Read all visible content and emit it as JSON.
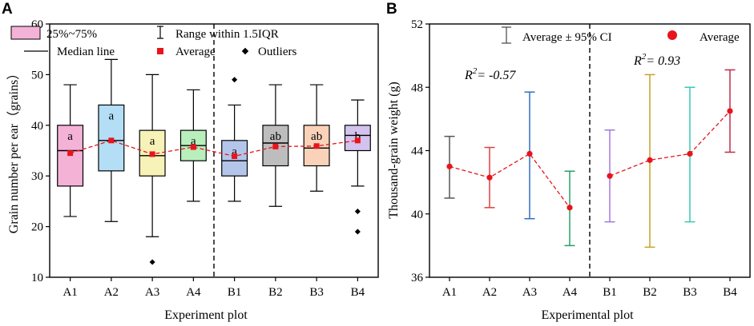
{
  "chart_data": [
    {
      "panel": "A",
      "type": "box",
      "xlabel": "Experiment plot",
      "ylabel": "Grain number per ear（grains）",
      "ylim": [
        10,
        60
      ],
      "yticks": [
        10,
        20,
        30,
        40,
        50,
        60
      ],
      "legend": {
        "box": "25%~75%",
        "range": "Range within 1.5IQR",
        "median": "Median line",
        "average": "Average",
        "outliers": "Outliers"
      },
      "categories": [
        "A1",
        "A2",
        "A3",
        "A4",
        "B1",
        "B2",
        "B3",
        "B4"
      ],
      "box_colors": [
        "#f4b2d6",
        "#b3def5",
        "#f6f2b8",
        "#b9efbc",
        "#b3c6ea",
        "#bdbdbd",
        "#f9d2b9",
        "#d3c3ee"
      ],
      "boxes": [
        {
          "min": 22,
          "q1": 28,
          "median": 35,
          "q3": 40,
          "max": 48,
          "mean": 34.5,
          "letter": "a",
          "outliers": []
        },
        {
          "min": 21,
          "q1": 31,
          "median": 37,
          "q3": 44,
          "max": 53,
          "mean": 37,
          "letter": "a",
          "outliers": []
        },
        {
          "min": 18,
          "q1": 30,
          "median": 34,
          "q3": 39,
          "max": 50,
          "mean": 34.3,
          "letter": "a",
          "outliers": [
            13
          ]
        },
        {
          "min": 25,
          "q1": 33,
          "median": 36,
          "q3": 39,
          "max": 47,
          "mean": 35.7,
          "letter": "a",
          "outliers": []
        },
        {
          "min": 25,
          "q1": 30,
          "median": 33,
          "q3": 37,
          "max": 44,
          "mean": 33.9,
          "letter": "a",
          "outliers": [
            49
          ]
        },
        {
          "min": 24,
          "q1": 32,
          "median": 36.5,
          "q3": 40,
          "max": 48,
          "mean": 35.8,
          "letter": "ab",
          "outliers": []
        },
        {
          "min": 27,
          "q1": 32,
          "median": 35.5,
          "q3": 40,
          "max": 48,
          "mean": 35.9,
          "letter": "ab",
          "outliers": []
        },
        {
          "min": 28,
          "q1": 35,
          "median": 38,
          "q3": 40,
          "max": 45,
          "mean": 37,
          "letter": "b",
          "outliers": [
            23,
            19
          ]
        }
      ]
    },
    {
      "panel": "B",
      "type": "errorbar",
      "xlabel": "Experimental plot",
      "ylabel": "Thousand-grain weight (g)",
      "ylim": [
        36,
        52
      ],
      "yticks": [
        36,
        40,
        44,
        48,
        52
      ],
      "legend": {
        "ci": "Average ± 95% CI",
        "average": "Average"
      },
      "annotations": [
        {
          "base": "R",
          "sup": "2",
          "rest": "= -0.57"
        },
        {
          "base": "R",
          "sup": "2",
          "rest": "= 0.93"
        }
      ],
      "categories": [
        "A1",
        "A2",
        "A3",
        "A4",
        "B1",
        "B2",
        "B3",
        "B4"
      ],
      "bar_colors": [
        "#555555",
        "#e04040",
        "#2f6fbd",
        "#2a9d6a",
        "#a07ad8",
        "#c9a227",
        "#37c9b3",
        "#c02a4a"
      ],
      "points": [
        {
          "mean": 43.0,
          "low": 41.0,
          "high": 44.9
        },
        {
          "mean": 42.3,
          "low": 40.4,
          "high": 44.2
        },
        {
          "mean": 43.8,
          "low": 39.7,
          "high": 47.7
        },
        {
          "mean": 40.4,
          "low": 38.0,
          "high": 42.7
        },
        {
          "mean": 42.4,
          "low": 39.5,
          "high": 45.3
        },
        {
          "mean": 43.4,
          "low": 37.9,
          "high": 48.8
        },
        {
          "mean": 43.8,
          "low": 39.5,
          "high": 48.0
        },
        {
          "mean": 46.5,
          "low": 43.9,
          "high": 49.1
        }
      ]
    }
  ]
}
